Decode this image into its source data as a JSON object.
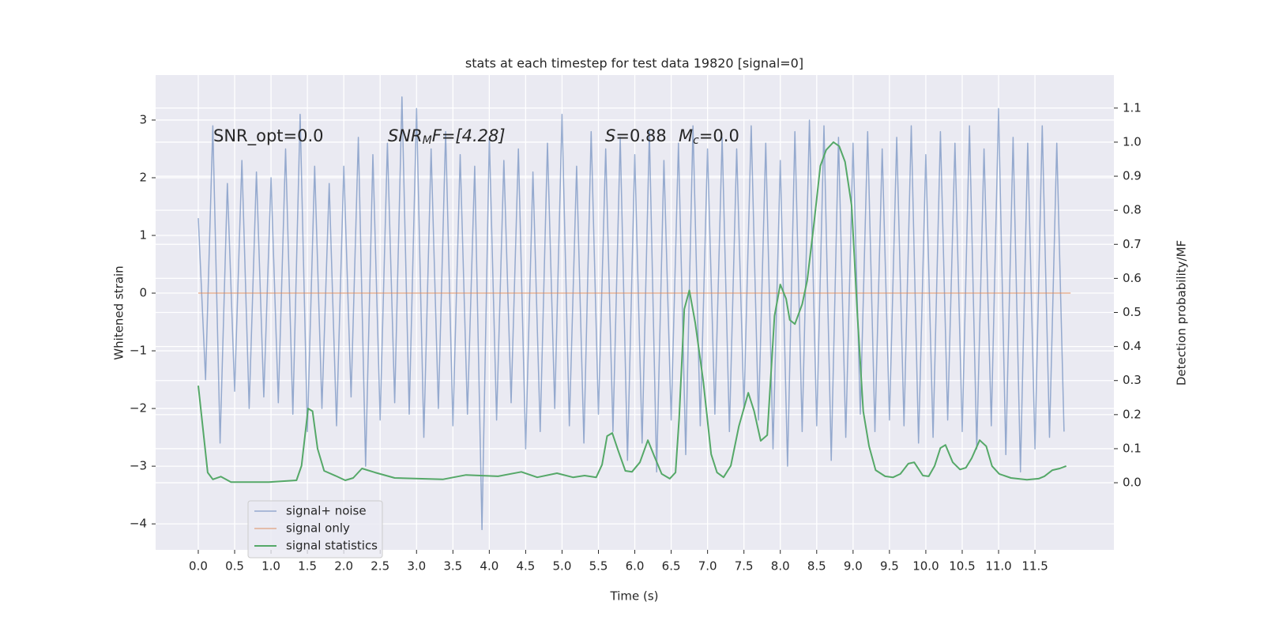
{
  "chart_data": {
    "type": "line",
    "title": "stats at each timestep for test data 19820 [signal=0]",
    "x_label": "Time (s)",
    "y_label": "Whitened strain",
    "y2_label": "Detection probability/MF",
    "annotations": [
      [
        "SNR_opt=0.0"
      ],
      [
        "SNR",
        "M",
        "F=[4.28]"
      ],
      [
        "S",
        "=0.88"
      ],
      [
        "M",
        "c",
        "=0.0"
      ]
    ],
    "xlim": [
      -0.586,
      12.585
    ],
    "ylim": [
      -4.45,
      3.78
    ],
    "y2lim": [
      -0.197,
      1.197
    ],
    "xticks": [
      {
        "value": 0,
        "label": "0.0"
      },
      0.5,
      {
        "value": 1,
        "label": "1.0"
      },
      1.5,
      {
        "value": 2,
        "label": "2.0"
      },
      2.5,
      {
        "value": 3,
        "label": "3.0"
      },
      3.5,
      {
        "value": 4,
        "label": "4.0"
      },
      4.5,
      {
        "value": 5,
        "label": "5.0"
      },
      5.5,
      {
        "value": 6,
        "label": "6.0"
      },
      6.5,
      {
        "value": 7,
        "label": "7.0"
      },
      7.5,
      {
        "value": 8,
        "label": "8.0"
      },
      8.5,
      {
        "value": 9,
        "label": "9.0"
      },
      9.5,
      {
        "value": 10,
        "label": "10.0"
      },
      10.5,
      {
        "value": 11,
        "label": "11.0"
      },
      11.5
    ],
    "yticks": [
      {
        "value": -4,
        "label": "−4"
      },
      {
        "value": -3,
        "label": "−3"
      },
      {
        "value": -2,
        "label": "−2"
      },
      {
        "value": -1,
        "label": "−1"
      },
      0,
      1,
      2,
      3
    ],
    "y2ticks": [
      {
        "value": 0,
        "label": "0.0"
      },
      0.1,
      0.2,
      0.3,
      0.4,
      0.5,
      0.6,
      0.7,
      0.8,
      0.9,
      {
        "value": 1,
        "label": "1.0"
      },
      1.1
    ],
    "grid": true,
    "legend": "lower left",
    "series": [
      {
        "name": "signal+ noise",
        "color": "#4c72b0",
        "x": [
          0,
          0.1,
          0.2,
          0.3,
          0.4,
          0.5,
          0.6,
          0.7,
          0.8,
          0.9,
          1,
          1.1,
          1.2,
          1.3,
          1.4,
          1.5,
          1.6,
          1.7,
          1.8,
          1.9,
          2,
          2.1,
          2.2,
          2.3,
          2.4,
          2.5,
          2.6,
          2.7,
          2.8,
          2.9,
          3,
          3.1,
          3.2,
          3.3,
          3.4,
          3.5,
          3.6,
          3.7,
          3.8,
          3.9,
          4,
          4.1,
          4.2,
          4.3,
          4.4,
          4.5,
          4.6,
          4.7,
          4.8,
          4.9,
          5,
          5.1,
          5.2,
          5.3,
          5.4,
          5.5,
          5.6,
          5.7,
          5.8,
          5.9,
          6,
          6.1,
          6.2,
          6.3,
          6.4,
          6.5,
          6.6,
          6.7,
          6.8,
          6.9,
          7,
          7.1,
          7.2,
          7.3,
          7.4,
          7.5,
          7.6,
          7.7,
          7.8,
          7.9,
          8,
          8.1,
          8.2,
          8.3,
          8.4,
          8.5,
          8.6,
          8.7,
          8.8,
          8.9,
          9,
          9.1,
          9.2,
          9.3,
          9.4,
          9.5,
          9.6,
          9.7,
          9.8,
          9.9,
          10,
          10.1,
          10.2,
          10.3,
          10.4,
          10.5,
          10.6,
          10.7,
          10.8,
          10.9,
          11,
          11.1,
          11.2,
          11.3,
          11.4,
          11.5,
          11.6,
          11.7,
          11.8,
          11.9
        ],
        "values": [
          1.3,
          -1.5,
          2.9,
          -2.6,
          1.9,
          -1.7,
          2.3,
          -2.0,
          2.1,
          -1.8,
          2.0,
          -1.9,
          2.5,
          -2.1,
          3.1,
          -2.4,
          2.2,
          -2.0,
          1.9,
          -2.3,
          2.2,
          -1.8,
          2.7,
          -3.0,
          2.4,
          -2.2,
          2.6,
          -1.9,
          3.4,
          -2.1,
          3.2,
          -2.5,
          2.5,
          -2.0,
          2.8,
          -2.3,
          2.4,
          -2.1,
          2.2,
          -4.1,
          2.7,
          -2.2,
          2.3,
          -1.9,
          2.5,
          -2.7,
          2.1,
          -2.4,
          2.6,
          -2.0,
          3.1,
          -2.3,
          2.2,
          -2.6,
          2.8,
          -2.1,
          2.5,
          -2.4,
          2.7,
          -2.9,
          2.4,
          -2.6,
          2.8,
          -3.1,
          2.3,
          -2.2,
          2.6,
          -2.8,
          2.9,
          -2.3,
          2.5,
          -2.1,
          2.7,
          -2.4,
          2.5,
          -2.0,
          2.9,
          -2.2,
          2.6,
          -2.7,
          2.3,
          -3.0,
          2.8,
          -2.4,
          3.0,
          -2.3,
          2.9,
          -2.9,
          2.7,
          -2.5,
          2.6,
          -2.1,
          2.8,
          -2.4,
          2.5,
          -2.2,
          2.7,
          -2.3,
          2.9,
          -2.6,
          2.4,
          -2.5,
          2.8,
          -2.2,
          2.6,
          -2.4,
          2.9,
          -2.7,
          2.5,
          -2.3,
          3.2,
          -2.8,
          2.7,
          -3.1,
          2.6,
          -2.7,
          2.9,
          -2.5,
          2.6,
          -2.4
        ]
      },
      {
        "name": "signal only",
        "color": "#dd8452",
        "x": [
          0,
          11.99
        ],
        "values": [
          0,
          0
        ]
      },
      {
        "name": "signal statistics",
        "color": "#55a868",
        "axis": "y2",
        "x": [
          0,
          0.13,
          0.2,
          0.31,
          0.45,
          0.97,
          1.35,
          1.42,
          1.51,
          1.57,
          1.64,
          1.73,
          1.89,
          2.02,
          2.13,
          2.25,
          2.43,
          2.7,
          3.36,
          3.68,
          4.12,
          4.44,
          4.66,
          4.93,
          5.15,
          5.31,
          5.47,
          5.55,
          5.62,
          5.69,
          5.77,
          5.87,
          5.96,
          6.07,
          6.18,
          6.27,
          6.37,
          6.48,
          6.56,
          6.61,
          6.68,
          6.75,
          6.83,
          6.94,
          7.05,
          7.13,
          7.22,
          7.32,
          7.43,
          7.56,
          7.64,
          7.73,
          7.82,
          7.92,
          8.0,
          8.08,
          8.13,
          8.2,
          8.3,
          8.37,
          8.46,
          8.55,
          8.63,
          8.73,
          8.81,
          8.89,
          8.98,
          9.06,
          9.14,
          9.22,
          9.31,
          9.44,
          9.55,
          9.65,
          9.76,
          9.84,
          9.96,
          10.04,
          10.12,
          10.2,
          10.27,
          10.37,
          10.47,
          10.55,
          10.63,
          10.74,
          10.83,
          10.91,
          11.01,
          11.17,
          11.39,
          11.55,
          11.63,
          11.74,
          11.84,
          11.93
        ],
        "values": [
          0.285,
          0.03,
          0.01,
          0.018,
          0.002,
          0.002,
          0.007,
          0.05,
          0.218,
          0.21,
          0.1,
          0.035,
          0.02,
          0.007,
          0.014,
          0.042,
          0.03,
          0.014,
          0.01,
          0.023,
          0.019,
          0.032,
          0.016,
          0.028,
          0.016,
          0.021,
          0.016,
          0.053,
          0.137,
          0.146,
          0.095,
          0.035,
          0.032,
          0.06,
          0.125,
          0.077,
          0.026,
          0.012,
          0.03,
          0.19,
          0.51,
          0.565,
          0.47,
          0.3,
          0.084,
          0.03,
          0.016,
          0.05,
          0.165,
          0.264,
          0.21,
          0.123,
          0.14,
          0.49,
          0.582,
          0.54,
          0.478,
          0.466,
          0.524,
          0.594,
          0.756,
          0.93,
          0.977,
          1.0,
          0.988,
          0.942,
          0.814,
          0.49,
          0.21,
          0.107,
          0.037,
          0.019,
          0.016,
          0.026,
          0.056,
          0.06,
          0.021,
          0.019,
          0.049,
          0.102,
          0.111,
          0.06,
          0.039,
          0.044,
          0.072,
          0.125,
          0.107,
          0.049,
          0.026,
          0.014,
          0.009,
          0.012,
          0.019,
          0.037,
          0.042,
          0.049
        ]
      }
    ]
  }
}
